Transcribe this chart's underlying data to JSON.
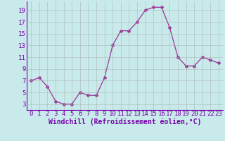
{
  "x": [
    0,
    1,
    2,
    3,
    4,
    5,
    6,
    7,
    8,
    9,
    10,
    11,
    12,
    13,
    14,
    15,
    16,
    17,
    18,
    19,
    20,
    21,
    22,
    23
  ],
  "y": [
    7,
    7.5,
    6,
    3.5,
    3,
    3,
    5,
    4.5,
    4.5,
    7.5,
    13,
    15.5,
    15.5,
    17,
    19,
    19.5,
    19.5,
    16,
    11,
    9.5,
    9.5,
    11,
    10.5,
    10
  ],
  "line_color": "#993399",
  "marker": "D",
  "marker_size": 2,
  "background_color": "#c8eaea",
  "grid_color": "#aaaaaa",
  "xlabel": "Windchill (Refroidissement éolien,°C)",
  "xlim": [
    -0.5,
    23.5
  ],
  "ylim": [
    2,
    20.5
  ],
  "yticks": [
    3,
    5,
    7,
    9,
    11,
    13,
    15,
    17,
    19
  ],
  "xticks": [
    0,
    1,
    2,
    3,
    4,
    5,
    6,
    7,
    8,
    9,
    10,
    11,
    12,
    13,
    14,
    15,
    16,
    17,
    18,
    19,
    20,
    21,
    22,
    23
  ],
  "xlabel_fontsize": 7,
  "tick_fontsize": 6.5,
  "label_color": "#7700aa"
}
